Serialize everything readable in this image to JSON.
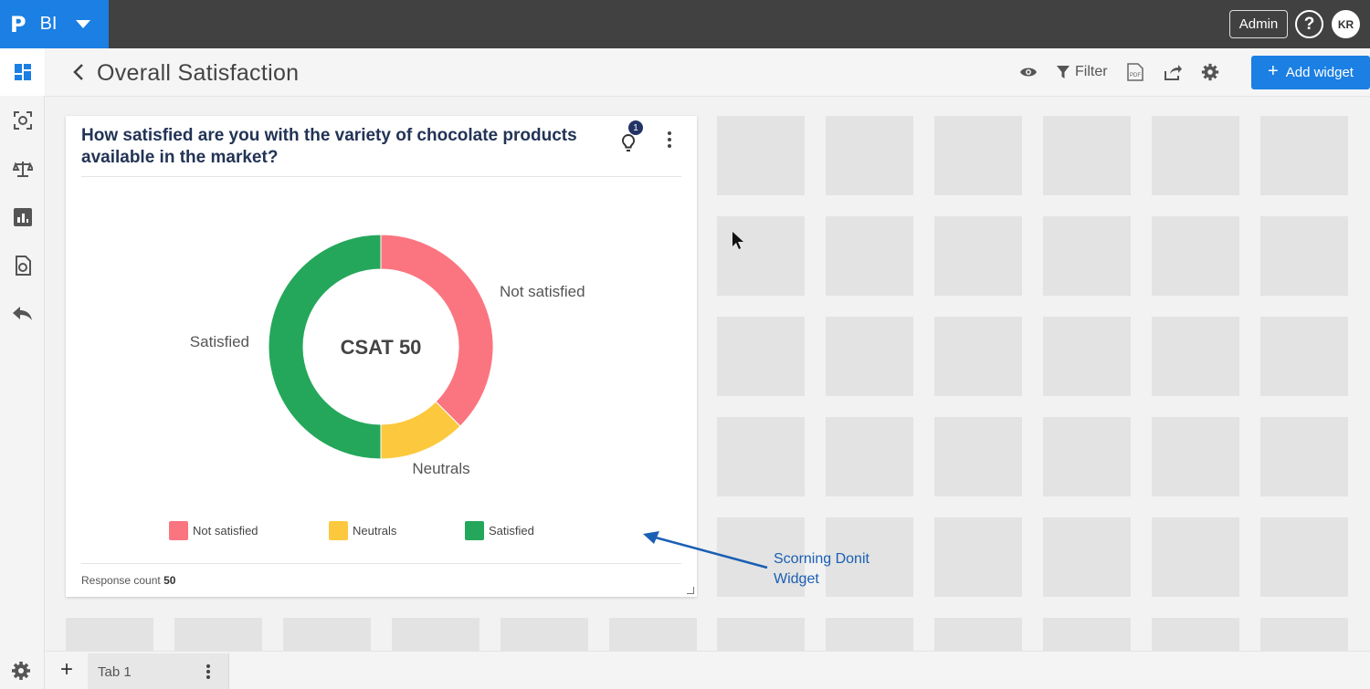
{
  "topbar": {
    "brand_logo": "P",
    "brand_label": "BI",
    "admin_label": "Admin",
    "help_glyph": "?",
    "avatar_initials": "KR"
  },
  "sidebar": {
    "items": [
      {
        "icon": "dashboard-icon",
        "active": true
      },
      {
        "icon": "scan-icon",
        "active": false
      },
      {
        "icon": "scale-icon",
        "active": false
      },
      {
        "icon": "bar-chart-icon",
        "active": false
      },
      {
        "icon": "report-icon",
        "active": false
      },
      {
        "icon": "reply-icon",
        "active": false
      }
    ],
    "bottom_icon": "settings-icon"
  },
  "header": {
    "title": "Overall Satisfaction",
    "filter_label": "Filter",
    "pdf_label": "PDF",
    "add_widget_label": "Add widget"
  },
  "widget": {
    "title": "How satisfied are you with the variety of chocolate products available in the market?",
    "insight_badge": "1",
    "center_label": "CSAT 50",
    "response_label": "Response count",
    "response_count": "50"
  },
  "chart_data": {
    "type": "pie",
    "subtype": "donut",
    "center_text": "CSAT 50",
    "categories": [
      "Not satisfied",
      "Neutrals",
      "Satisfied"
    ],
    "values": [
      37.5,
      12.5,
      50
    ],
    "colors": [
      "#fb7580",
      "#fcc83e",
      "#24a75a"
    ],
    "legend": "bottom"
  },
  "annotation": {
    "line1": "Scorning Donit",
    "line2": "Widget"
  },
  "bottombar": {
    "add_tab_glyph": "+",
    "tab_label": "Tab 1"
  },
  "colors": {
    "brand": "#1b7fe3",
    "topbar": "#414141",
    "title": "#223355",
    "annotation": "#1a5fb4"
  }
}
